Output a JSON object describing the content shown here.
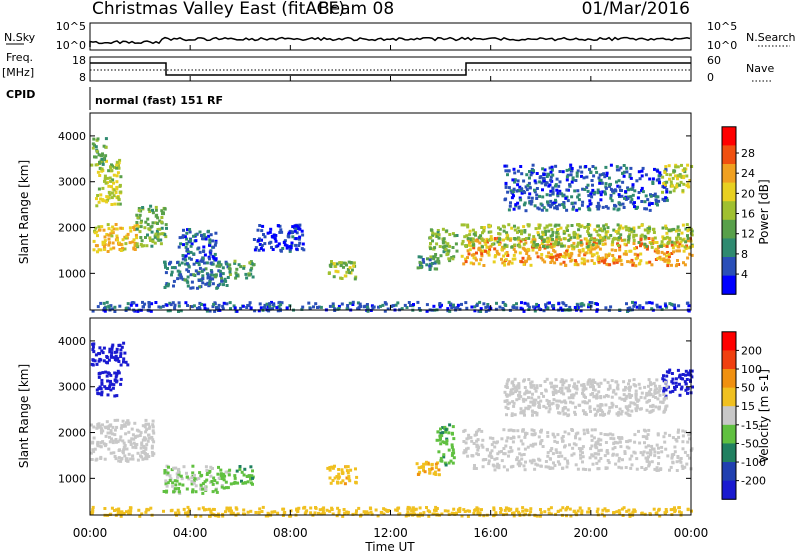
{
  "header": {
    "title": "Christmas Valley East (fitACF)",
    "beam": "Beam 08",
    "date": "01/Mar/2016"
  },
  "strips": {
    "nsky": {
      "label": "N.Sky",
      "ticks": [
        "10^5",
        "10^0"
      ],
      "right_label": "N.Search",
      "right_ticks": [
        "10^5",
        "10^0"
      ]
    },
    "freq": {
      "label_line1": "Freq.",
      "label_line2": "[MHz]",
      "ticks": [
        "18",
        "8"
      ],
      "right_label": "Nave",
      "right_ticks": [
        "60",
        "0"
      ]
    },
    "cpid": {
      "label": "CPID",
      "program": "normal (fast) 151 RF"
    }
  },
  "x_axis": {
    "label": "Time UT",
    "ticks": [
      "00:00",
      "04:00",
      "08:00",
      "12:00",
      "16:00",
      "20:00",
      "00:00"
    ]
  },
  "chart_data": [
    {
      "type": "heatmap",
      "name": "power",
      "xlabel": "Time UT",
      "ylabel": "Slant Range [km]",
      "xlim": [
        0,
        24
      ],
      "ylim": [
        200,
        4500
      ],
      "yticks": [
        "1000",
        "2000",
        "3000",
        "4000"
      ],
      "colorbar": {
        "label": "Power [dB]",
        "ticks": [
          "4",
          "8",
          "12",
          "16",
          "20",
          "24",
          "28"
        ],
        "range": [
          0,
          30
        ],
        "colors": [
          "#0000ff",
          "#2a4fb8",
          "#2f8a70",
          "#58a04a",
          "#a0c030",
          "#e8d020",
          "#f0a020",
          "#f05010",
          "#ff0000"
        ]
      },
      "regions": [
        {
          "t": [
            0.1,
            1.9
          ],
          "r": [
            1500,
            2100
          ],
          "level": 22
        },
        {
          "t": [
            0.2,
            1.2
          ],
          "r": [
            2500,
            3500
          ],
          "level": 18
        },
        {
          "t": [
            0.0,
            0.6
          ],
          "r": [
            3300,
            4000
          ],
          "level": 14
        },
        {
          "t": [
            1.8,
            3.0
          ],
          "r": [
            1600,
            2500
          ],
          "level": 14
        },
        {
          "t": [
            2.9,
            5.5
          ],
          "r": [
            700,
            1300
          ],
          "level": 8
        },
        {
          "t": [
            5.5,
            6.5
          ],
          "r": [
            900,
            1300
          ],
          "level": 12
        },
        {
          "t": [
            3.5,
            5.0
          ],
          "r": [
            1200,
            2000
          ],
          "level": 6
        },
        {
          "t": [
            6.5,
            8.5
          ],
          "r": [
            1500,
            2100
          ],
          "level": 4
        },
        {
          "t": [
            9.4,
            10.6
          ],
          "r": [
            900,
            1300
          ],
          "level": 16
        },
        {
          "t": [
            13.0,
            13.9
          ],
          "r": [
            1100,
            1400
          ],
          "level": 10
        },
        {
          "t": [
            13.5,
            14.6
          ],
          "r": [
            1300,
            2000
          ],
          "level": 14
        },
        {
          "t": [
            14.8,
            24.0
          ],
          "r": [
            1200,
            1800
          ],
          "level": 24
        },
        {
          "t": [
            14.8,
            24.0
          ],
          "r": [
            1600,
            2100
          ],
          "level": 16
        },
        {
          "t": [
            16.5,
            23.0
          ],
          "r": [
            2400,
            3400
          ],
          "level": 6
        },
        {
          "t": [
            22.8,
            24.0
          ],
          "r": [
            2800,
            3400
          ],
          "level": 18
        },
        {
          "t": [
            0.0,
            24.0
          ],
          "r": [
            200,
            400
          ],
          "level": 6
        }
      ]
    },
    {
      "type": "heatmap",
      "name": "velocity",
      "xlabel": "Time UT",
      "ylabel": "Slant Range [km]",
      "xlim": [
        0,
        24
      ],
      "ylim": [
        200,
        4500
      ],
      "yticks": [
        "1000",
        "2000",
        "3000",
        "4000"
      ],
      "colorbar": {
        "label": "Velocity [m s-1]",
        "ticks": [
          "200",
          "100",
          "50",
          "15",
          "-15",
          "-50",
          "-100",
          "-200"
        ],
        "colors": [
          "#1a1ad0",
          "#2040b0",
          "#208060",
          "#60c040",
          "#c8c8c8",
          "#f0c020",
          "#f09010",
          "#f04010",
          "#ff0000"
        ]
      },
      "regions": [
        {
          "t": [
            0.0,
            2.5
          ],
          "r": [
            1400,
            2300
          ],
          "level": 0
        },
        {
          "t": [
            0.2,
            1.2
          ],
          "r": [
            2800,
            3400
          ],
          "level": 250
        },
        {
          "t": [
            0.0,
            1.5
          ],
          "r": [
            3500,
            4000
          ],
          "level": 250
        },
        {
          "t": [
            2.9,
            5.5
          ],
          "r": [
            700,
            1300
          ],
          "level": 20
        },
        {
          "t": [
            5.5,
            6.5
          ],
          "r": [
            900,
            1300
          ],
          "level": 40
        },
        {
          "t": [
            9.4,
            10.6
          ],
          "r": [
            900,
            1300
          ],
          "level": -40
        },
        {
          "t": [
            13.0,
            13.9
          ],
          "r": [
            1100,
            1400
          ],
          "level": -40
        },
        {
          "t": [
            13.8,
            14.5
          ],
          "r": [
            1300,
            2200
          ],
          "level": 40
        },
        {
          "t": [
            14.8,
            24.0
          ],
          "r": [
            1200,
            2100
          ],
          "level": 0
        },
        {
          "t": [
            22.8,
            24.0
          ],
          "r": [
            2800,
            3400
          ],
          "level": 250
        },
        {
          "t": [
            16.5,
            23.0
          ],
          "r": [
            2400,
            3200
          ],
          "level": 0
        },
        {
          "t": [
            0.0,
            24.0
          ],
          "r": [
            200,
            400
          ],
          "level": -30
        }
      ]
    }
  ]
}
